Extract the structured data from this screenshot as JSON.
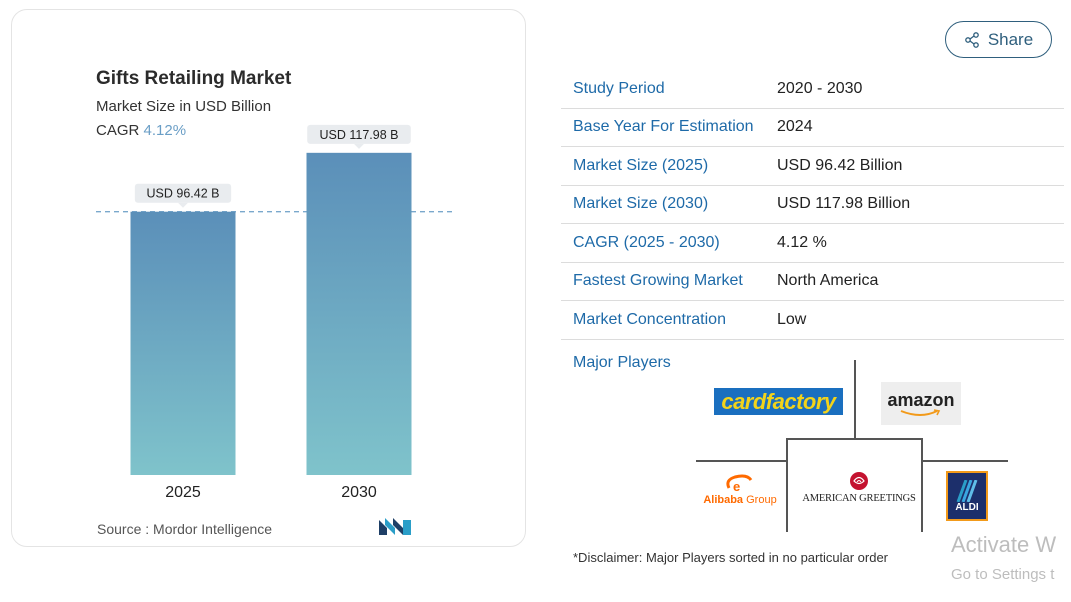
{
  "chart_data": {
    "type": "bar",
    "title": "Gifts Retailing Market",
    "subtitle": "Market Size in USD Billion",
    "cagr_label": "CAGR",
    "cagr_value": "4.12%",
    "categories": [
      "2025",
      "2030"
    ],
    "values": [
      96.42,
      117.98
    ],
    "data_labels": [
      "USD 96.42 B",
      "USD 117.98 B"
    ],
    "ylim": [
      0,
      130
    ],
    "reference_line_value": 96.42,
    "grid": false,
    "bar_gradient": [
      "#5b8fb9",
      "#7fc3cb"
    ],
    "source": "Source :  Mordor Intelligence"
  },
  "share": {
    "label": "Share",
    "icon": "share-icon"
  },
  "stats": [
    {
      "key": "Study Period",
      "value": "2020 - 2030"
    },
    {
      "key": "Base Year For Estimation",
      "value": "2024"
    },
    {
      "key": "Market Size (2025)",
      "value": "USD 96.42 Billion"
    },
    {
      "key": "Market Size (2030)",
      "value": "USD 117.98 Billion"
    },
    {
      "key": "CAGR (2025 - 2030)",
      "value": "4.12 %"
    },
    {
      "key": "Fastest Growing Market",
      "value": "North America"
    },
    {
      "key": "Market Concentration",
      "value": "Low"
    }
  ],
  "players": {
    "label": "Major Players",
    "logos": {
      "cardfactory": "cardfactory",
      "amazon": "amazon",
      "alibaba": "Alibaba",
      "alibaba_group": "Group",
      "american_greetings": "AMERICAN GREETINGS",
      "aldi": "ALDI"
    }
  },
  "disclaimer": "*Disclaimer: Major Players sorted in no particular order",
  "watermark": {
    "line1": "Activate W",
    "line2": "Go to Settings t"
  },
  "colors": {
    "accent_blue": "#1e6aa8",
    "share_border": "#2f5f7d",
    "cagr_value": "#6a9ec6"
  }
}
